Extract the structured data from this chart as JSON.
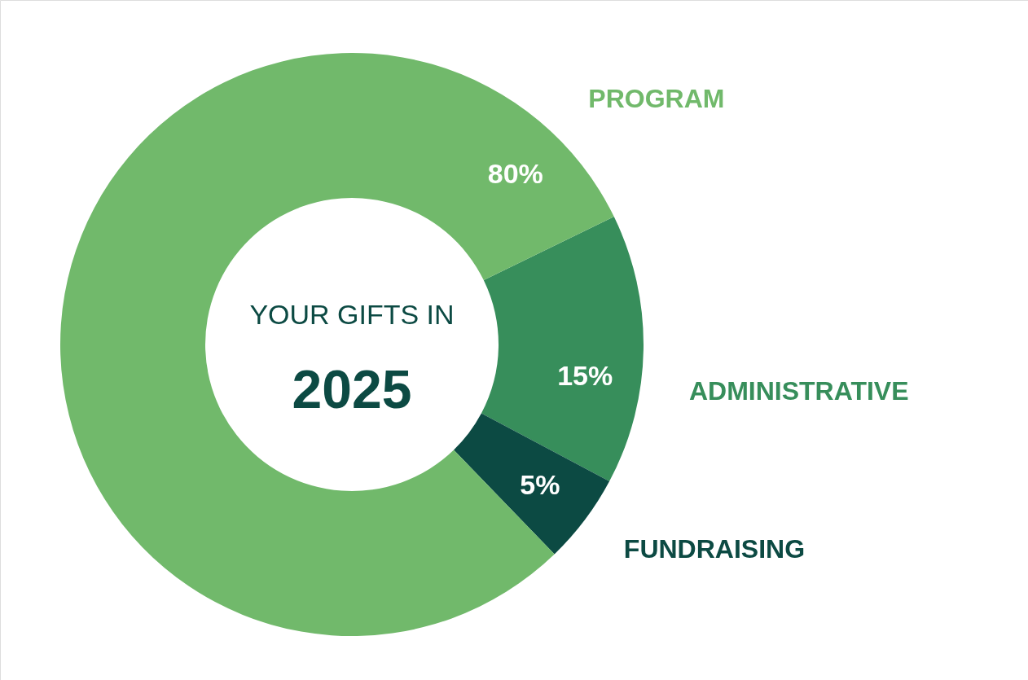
{
  "chart_data": {
    "type": "donut",
    "title": "YOUR GIFTS IN",
    "subtitle": "2025",
    "categories": [
      "ADMINISTRATIVE",
      "FUNDRAISING",
      "PROGRAM"
    ],
    "values": [
      15,
      5,
      80
    ],
    "colors": [
      "#378e5b",
      "#0c4a43",
      "#71b96b"
    ],
    "value_labels": [
      "15%",
      "5%",
      "80%"
    ]
  }
}
